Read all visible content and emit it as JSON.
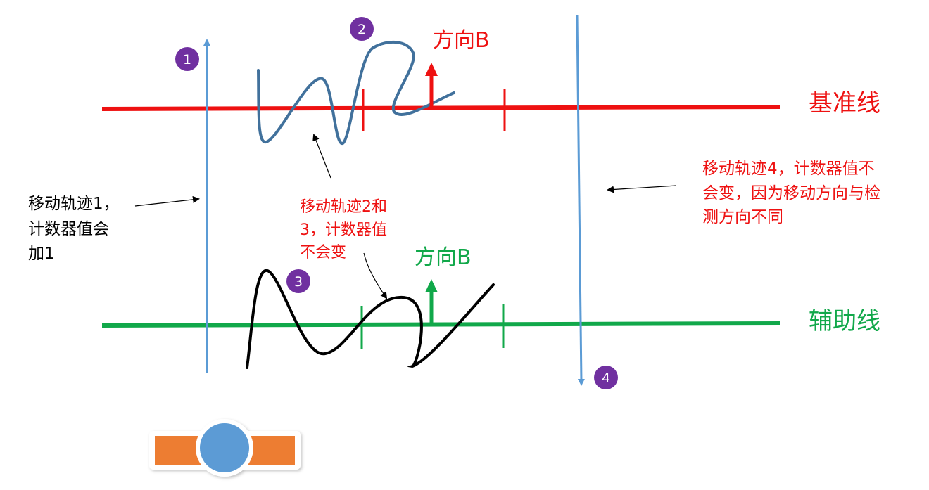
{
  "colors": {
    "red": "#ee1111",
    "green": "#11a84a",
    "blue": "#5b9bd5",
    "purple": "#7030a0",
    "orange": "#ed7d31",
    "dark_blue": "#41719c",
    "black": "#000000"
  },
  "lines": {
    "reference": "基准线",
    "auxiliary": "辅助线"
  },
  "markers": {
    "one": "1",
    "two": "2",
    "three": "3",
    "four": "4"
  },
  "directions": {
    "red": "方向B",
    "green": "方向B"
  },
  "notes": {
    "track1": [
      "移动轨迹1，",
      "计数器值会",
      "加1"
    ],
    "track23": [
      "移动轨迹2和",
      "3，计数器值",
      "不会变"
    ],
    "track4": [
      "移动轨迹4，计数器值不",
      "会变，因为移动方向与检",
      "测方向不同"
    ]
  },
  "icons": {
    "sensor": "orange-bar-with-blue-circle"
  }
}
